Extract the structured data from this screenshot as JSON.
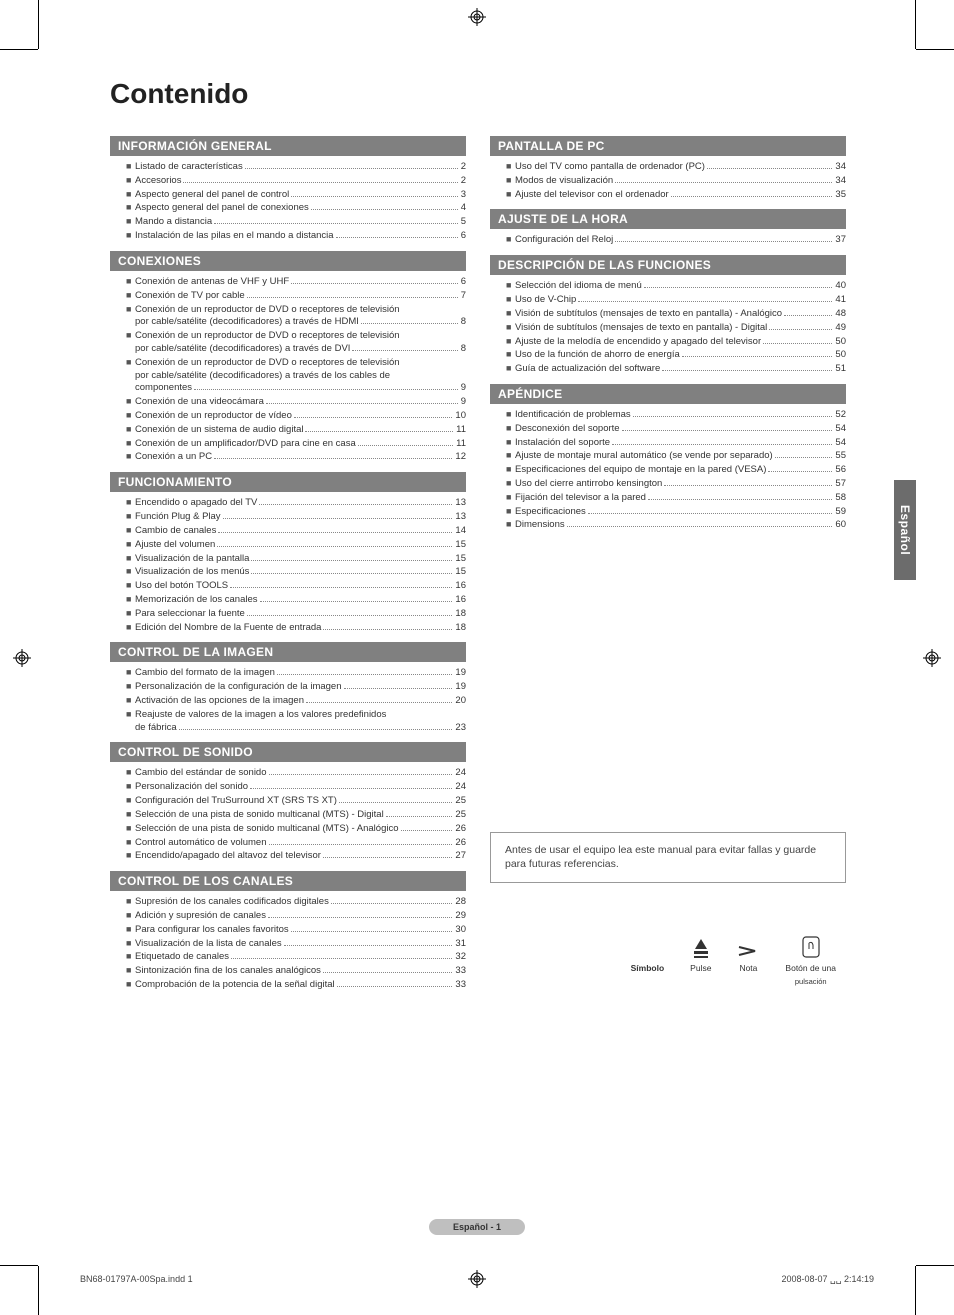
{
  "title": "Contenido",
  "side_tab": "Español",
  "footer_pill": "Español - 1",
  "print_left": "BN68-01797A-00Spa.indd   1",
  "print_right": "2008-08-07   ␣␣ 2:14:19",
  "note_box": "Antes de usar el equipo lea este manual para evitar fallas y guarde para futuras referencias.",
  "symbols": {
    "s1": "Símbolo",
    "s2": "Pulse",
    "s3": "Nota",
    "s4a": "Botón de una",
    "s4b": "pulsación"
  },
  "sections_left": [
    {
      "head": "INFORMACIÓN GENERAL",
      "items": [
        {
          "label": "Listado de características",
          "page": "2"
        },
        {
          "label": "Accesorios",
          "page": "2"
        },
        {
          "label": "Aspecto general del panel de control",
          "page": "3"
        },
        {
          "label": "Aspecto general del panel de conexiones",
          "page": "4"
        },
        {
          "label": "Mando a distancia",
          "page": "5"
        },
        {
          "label": "Instalación de las pilas en el mando a distancia",
          "page": "6"
        }
      ]
    },
    {
      "head": "CONEXIONES",
      "items": [
        {
          "label": "Conexión de antenas de VHF y UHF",
          "page": "6"
        },
        {
          "label": "Conexión de TV por cable",
          "page": "7"
        },
        {
          "label": "Conexión de un reproductor de DVD o receptores de televisión",
          "cont": "por cable/satélite (decodificadores) a través de HDMI",
          "page": "8"
        },
        {
          "label": "Conexión de un reproductor de DVD o receptores de televisión",
          "cont": "por cable/satélite (decodificadores) a través de DVI",
          "page": "8"
        },
        {
          "label": "Conexión de un reproductor de DVD o receptores de televisión",
          "cont": "por cable/satélite (decodificadores) a través de los cables de",
          "cont2": "componentes",
          "page": "9"
        },
        {
          "label": "Conexión de una videocámara",
          "page": "9"
        },
        {
          "label": "Conexión de un reproductor de vídeo",
          "page": "10"
        },
        {
          "label": "Conexión de un sistema de audio digital",
          "page": "11"
        },
        {
          "label": "Conexión de un amplificador/DVD para cine en casa",
          "page": "11"
        },
        {
          "label": "Conexión a un PC",
          "page": "12"
        }
      ]
    },
    {
      "head": "FUNCIONAMIENTO",
      "items": [
        {
          "label": "Encendido o apagado del TV",
          "page": "13"
        },
        {
          "label": "Función Plug & Play",
          "page": "13"
        },
        {
          "label": "Cambio de canales",
          "page": "14"
        },
        {
          "label": "Ajuste del volumen",
          "page": "15"
        },
        {
          "label": "Visualización de la pantalla",
          "page": "15"
        },
        {
          "label": "Visualización de los menús",
          "page": "15"
        },
        {
          "label": "Uso del botón TOOLS",
          "page": "16"
        },
        {
          "label": "Memorización de los canales",
          "page": "16"
        },
        {
          "label": "Para seleccionar la fuente",
          "page": "18"
        },
        {
          "label": "Edición del Nombre de la Fuente de entrada",
          "page": "18"
        }
      ]
    },
    {
      "head": "CONTROL DE LA IMAGEN",
      "items": [
        {
          "label": "Cambio del formato de la imagen",
          "page": "19"
        },
        {
          "label": "Personalización de la configuración de la imagen",
          "page": "19"
        },
        {
          "label": "Activación de las opciones de la imagen",
          "page": "20"
        },
        {
          "label": "Reajuste de valores de la imagen a los valores predefinidos",
          "cont": "de fábrica",
          "page": "23"
        }
      ]
    },
    {
      "head": "CONTROL DE SONIDO",
      "items": [
        {
          "label": "Cambio del estándar de sonido",
          "page": "24"
        },
        {
          "label": "Personalización del sonido",
          "page": "24"
        },
        {
          "label": "Configuración del TruSurround XT (SRS TS XT)",
          "page": "25"
        },
        {
          "label": "Selección de una pista de sonido multicanal (MTS) - Digital",
          "page": "25"
        },
        {
          "label": "Selección de una pista de sonido multicanal (MTS) - Analógico",
          "page": "26"
        },
        {
          "label": "Control automático de volumen",
          "page": "26"
        },
        {
          "label": "Encendido/apagado del altavoz del televisor",
          "page": "27"
        }
      ]
    },
    {
      "head": "CONTROL DE LOS CANALES",
      "items": [
        {
          "label": "Supresión de los canales codificados digitales",
          "page": "28"
        },
        {
          "label": "Adición y supresión de canales",
          "page": "29"
        },
        {
          "label": "Para configurar los canales favoritos",
          "page": "30"
        },
        {
          "label": "Visualización de la lista de canales",
          "page": "31"
        },
        {
          "label": "Etiquetado de canales",
          "page": "32"
        },
        {
          "label": "Sintonización fina de los canales analógicos",
          "page": "33"
        },
        {
          "label": "Comprobación de la potencia de la señal digital",
          "page": "33"
        }
      ]
    }
  ],
  "sections_right": [
    {
      "head": "PANTALLA DE PC",
      "items": [
        {
          "label": "Uso del TV como pantalla de ordenador (PC)",
          "page": "34"
        },
        {
          "label": "Modos de visualización",
          "page": "34"
        },
        {
          "label": "Ajuste del televisor con el ordenador",
          "page": "35"
        }
      ]
    },
    {
      "head": "AJUSTE DE LA HORA",
      "items": [
        {
          "label": "Configuración del Reloj",
          "page": "37"
        }
      ]
    },
    {
      "head": "DESCRIPCIÓN DE LAS FUNCIONES",
      "items": [
        {
          "label": "Selección del idioma de menú",
          "page": "40"
        },
        {
          "label": "Uso de V-Chip",
          "page": "41"
        },
        {
          "label": "Visión de subtítulos (mensajes de texto en pantalla) - Analógico",
          "page": "48"
        },
        {
          "label": "Visión de subtítulos (mensajes de texto en pantalla) - Digital",
          "page": "49"
        },
        {
          "label": "Ajuste de la melodía de encendido y apagado del televisor",
          "page": "50"
        },
        {
          "label": "Uso de la función de ahorro de energía",
          "page": "50"
        },
        {
          "label": "Guía de actualización del software",
          "page": "51"
        }
      ]
    },
    {
      "head": "APÉNDICE",
      "items": [
        {
          "label": "Identificación de problemas",
          "page": "52"
        },
        {
          "label": "Desconexión del soporte",
          "page": "54"
        },
        {
          "label": "Instalación del soporte",
          "page": "54"
        },
        {
          "label": "Ajuste de montaje mural automático (se vende por separado)",
          "page": "55"
        },
        {
          "label": "Especificaciones del equipo de montaje en la pared (VESA)",
          "page": "56"
        },
        {
          "label": "Uso del cierre antirrobo kensington",
          "page": "57"
        },
        {
          "label": "Fijación del televisor a la pared",
          "page": "58"
        },
        {
          "label": " Especificaciones",
          "page": "59"
        },
        {
          "label": "Dimensions",
          "page": "60"
        }
      ]
    }
  ]
}
